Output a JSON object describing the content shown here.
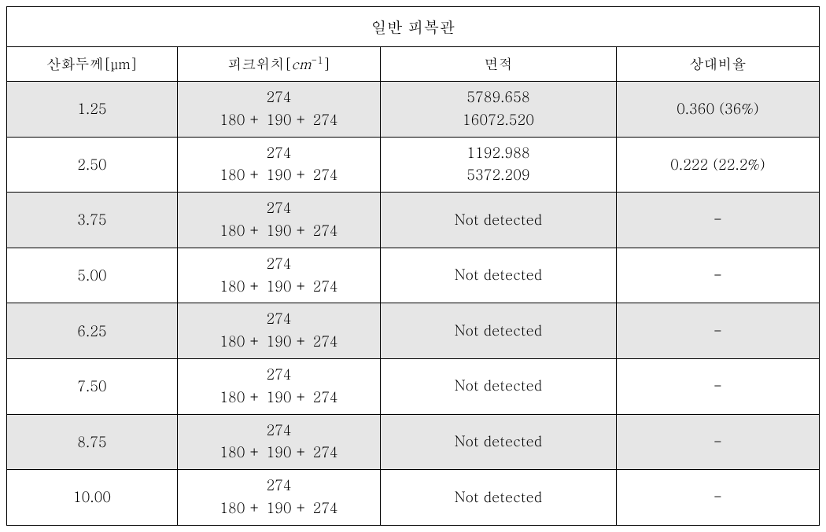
{
  "table": {
    "title": "일반 피복관",
    "headers": {
      "col1_prefix": "산화두께[",
      "col1_unit": "μm",
      "col1_suffix": "]",
      "col2_prefix": "피크위치[",
      "col2_unit": "cm",
      "col2_sup": "-1",
      "col2_suffix": "]",
      "col3": "면적",
      "col4": "상대비율"
    },
    "peak_line1": "274",
    "peak_line2": "180 + 190 + 274",
    "not_detected": "Not detected",
    "dash": "-",
    "rows": [
      {
        "thickness": "1.25",
        "area_line1": "5789.658",
        "area_line2": "16072.520",
        "ratio": "0.360 (36%)",
        "shaded": true,
        "detected": true
      },
      {
        "thickness": "2.50",
        "area_line1": "1192.988",
        "area_line2": "5372.209",
        "ratio": "0.222 (22.2%)",
        "shaded": false,
        "detected": true
      },
      {
        "thickness": "3.75",
        "shaded": true,
        "detected": false
      },
      {
        "thickness": "5.00",
        "shaded": false,
        "detected": false
      },
      {
        "thickness": "6.25",
        "shaded": true,
        "detected": false
      },
      {
        "thickness": "7.50",
        "shaded": false,
        "detected": false
      },
      {
        "thickness": "8.75",
        "shaded": true,
        "detected": false
      },
      {
        "thickness": "10.00",
        "shaded": false,
        "detected": false
      }
    ],
    "colors": {
      "shaded_bg": "#e6e6e6",
      "border": "#000000",
      "text": "#000000",
      "background": "#ffffff"
    },
    "font": {
      "family": "Batang, serif",
      "title_size": 20,
      "header_size": 18,
      "body_size": 18
    }
  }
}
